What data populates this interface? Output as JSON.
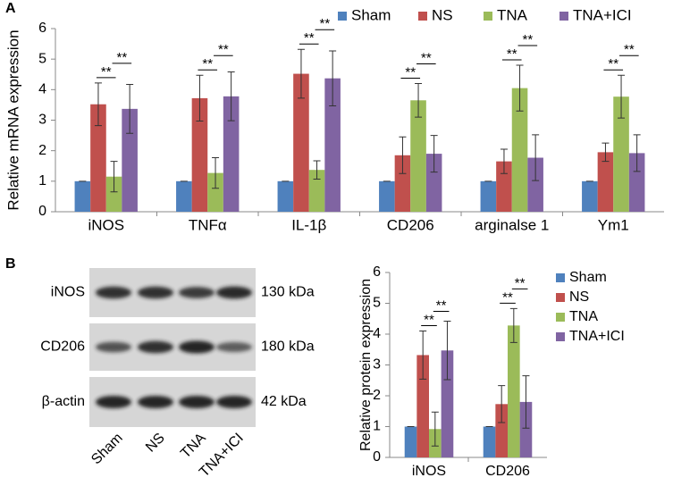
{
  "chart_data": [
    {
      "type": "bar",
      "panel_label": "A",
      "ylabel": "Relative mRNA expression",
      "categories": [
        "iNOS",
        "TNFα",
        "IL-1β",
        "CD206",
        "arginalse 1",
        "Ym1"
      ],
      "series": [
        {
          "name": "Sham",
          "color": "#4f81bd",
          "values": [
            1,
            1,
            1,
            1,
            1,
            1
          ],
          "errors": [
            0,
            0,
            0,
            0,
            0,
            0
          ]
        },
        {
          "name": "NS",
          "color": "#c0504d",
          "values": [
            3.52,
            3.72,
            4.52,
            1.85,
            1.65,
            1.95
          ],
          "errors": [
            0.7,
            0.75,
            0.8,
            0.6,
            0.4,
            0.3
          ]
        },
        {
          "name": "TNA",
          "color": "#9bbb59",
          "values": [
            1.15,
            1.27,
            1.37,
            3.65,
            4.05,
            3.77
          ],
          "errors": [
            0.5,
            0.5,
            0.3,
            0.55,
            0.75,
            0.7
          ]
        },
        {
          "name": "TNA+ICI",
          "color": "#8064a2",
          "values": [
            3.37,
            3.78,
            4.37,
            1.9,
            1.77,
            1.92
          ],
          "errors": [
            0.8,
            0.8,
            0.9,
            0.6,
            0.75,
            0.6
          ]
        }
      ],
      "significance": [
        [
          "**",
          "**"
        ],
        [
          "**",
          "**"
        ],
        [
          "**",
          "**"
        ],
        [
          "**",
          "**"
        ],
        [
          "**",
          "**"
        ],
        [
          "**",
          "**"
        ]
      ],
      "ylim": [
        0,
        6
      ],
      "yticks": [
        0,
        1,
        2,
        3,
        4,
        5,
        6
      ],
      "legend": "top"
    },
    {
      "type": "bar",
      "panel_label": "B",
      "ylabel": "Relative protein expression",
      "categories": [
        "iNOS",
        "CD206"
      ],
      "series": [
        {
          "name": "Sham",
          "color": "#4f81bd",
          "values": [
            1,
            1
          ],
          "errors": [
            0,
            0
          ]
        },
        {
          "name": "NS",
          "color": "#c0504d",
          "values": [
            3.32,
            1.73
          ],
          "errors": [
            0.78,
            0.6
          ]
        },
        {
          "name": "TNA",
          "color": "#9bbb59",
          "values": [
            0.92,
            4.28
          ],
          "errors": [
            0.55,
            0.55
          ]
        },
        {
          "name": "TNA+ICI",
          "color": "#8064a2",
          "values": [
            3.47,
            1.8
          ],
          "errors": [
            0.95,
            0.85
          ]
        }
      ],
      "significance": [
        [
          "**",
          "**"
        ],
        [
          "**",
          "**"
        ]
      ],
      "ylim": [
        0,
        6
      ],
      "yticks": [
        0,
        1,
        2,
        3,
        4,
        5,
        6
      ],
      "legend": "right"
    }
  ],
  "blot": {
    "rows": [
      {
        "label": "iNOS",
        "size": "130 kDa"
      },
      {
        "label": "CD206",
        "size": "180 kDa"
      },
      {
        "label": "β-actin",
        "size": "42  kDa"
      }
    ],
    "lanes": [
      "Sham",
      "NS",
      "TNA",
      "TNA+ICI"
    ]
  }
}
